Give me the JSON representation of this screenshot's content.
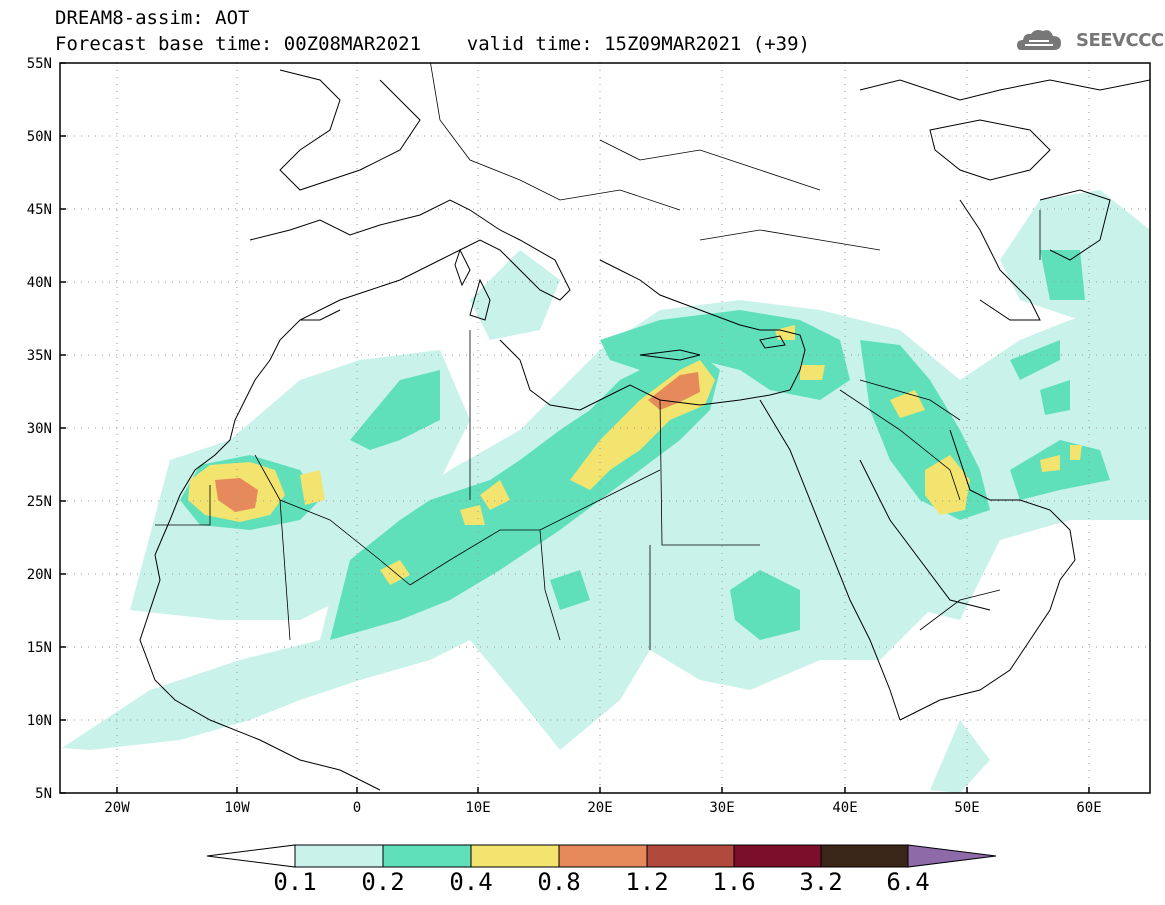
{
  "header": {
    "line1": "DREAM8-assim: AOT",
    "line2": "Forecast base time: 00Z08MAR2021    valid time: 15Z09MAR2021 (+39)",
    "logo_text": "SEEVCCC",
    "logo_icon": "cloud-icon"
  },
  "map": {
    "lat_ticks": [
      "55N",
      "50N",
      "45N",
      "40N",
      "35N",
      "30N",
      "25N",
      "20N",
      "15N",
      "10N",
      "5N"
    ],
    "lon_ticks": [
      "20W",
      "10W",
      "0",
      "10E",
      "20E",
      "30E",
      "40E",
      "50E",
      "60E"
    ],
    "lat_range": [
      5,
      55
    ],
    "lon_range": [
      -25,
      65
    ]
  },
  "colorbar": {
    "labels": [
      "0.1",
      "0.2",
      "0.4",
      "0.8",
      "1.2",
      "1.6",
      "3.2",
      "6.4"
    ],
    "colors": [
      "#ffffff",
      "#c8f2ea",
      "#5fe0bb",
      "#f2e46e",
      "#e68a5c",
      "#b04a3c",
      "#7a0e2b",
      "#3a2618",
      "#8e6aa8"
    ]
  }
}
